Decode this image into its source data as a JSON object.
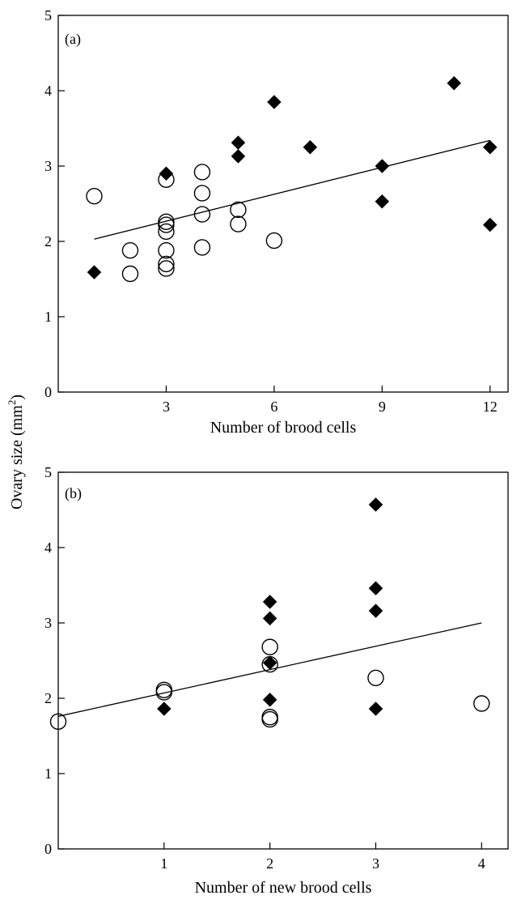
{
  "figure": {
    "ylabel_prefix": "Ovary size (mm",
    "ylabel_sup": "2",
    "ylabel_suffix": ")"
  },
  "chart_data": [
    {
      "type": "scatter",
      "panel_label": "(a)",
      "xlabel": "Number of brood cells",
      "ylabel": "Ovary size (mm2)",
      "xlim": [
        0,
        12.5
      ],
      "ylim": [
        0,
        5
      ],
      "xticks": [
        3,
        6,
        9,
        12
      ],
      "yticks": [
        0,
        1,
        2,
        3,
        4,
        5
      ],
      "grid": false,
      "series": [
        {
          "marker": "open-circle",
          "color": "#000000",
          "points": [
            {
              "x": 1,
              "y": 2.6
            },
            {
              "x": 2,
              "y": 1.88
            },
            {
              "x": 2,
              "y": 1.57
            },
            {
              "x": 3,
              "y": 2.82
            },
            {
              "x": 3,
              "y": 2.26
            },
            {
              "x": 3,
              "y": 2.22
            },
            {
              "x": 3,
              "y": 2.13
            },
            {
              "x": 3,
              "y": 1.88
            },
            {
              "x": 3,
              "y": 1.7
            },
            {
              "x": 3,
              "y": 1.64
            },
            {
              "x": 4,
              "y": 2.92
            },
            {
              "x": 4,
              "y": 2.64
            },
            {
              "x": 4,
              "y": 2.36
            },
            {
              "x": 4,
              "y": 1.92
            },
            {
              "x": 5,
              "y": 2.42
            },
            {
              "x": 5,
              "y": 2.23
            },
            {
              "x": 6,
              "y": 2.01
            }
          ]
        },
        {
          "marker": "filled-diamond",
          "color": "#000000",
          "points": [
            {
              "x": 1,
              "y": 1.59
            },
            {
              "x": 3,
              "y": 2.9
            },
            {
              "x": 5,
              "y": 3.31
            },
            {
              "x": 5,
              "y": 3.13
            },
            {
              "x": 6,
              "y": 3.85
            },
            {
              "x": 7,
              "y": 3.25
            },
            {
              "x": 9,
              "y": 3.0
            },
            {
              "x": 9,
              "y": 2.53
            },
            {
              "x": 11,
              "y": 4.1
            },
            {
              "x": 12,
              "y": 3.25
            },
            {
              "x": 12,
              "y": 2.22
            }
          ]
        }
      ],
      "regression_line": {
        "x": [
          1,
          12
        ],
        "y": [
          2.03,
          3.34
        ]
      }
    },
    {
      "type": "scatter",
      "panel_label": "(b)",
      "xlabel": "Number of new brood cells",
      "ylabel": "Ovary size (mm2)",
      "xlim": [
        0,
        4.25
      ],
      "ylim": [
        0,
        5
      ],
      "xticks": [
        1,
        2,
        3,
        4
      ],
      "yticks": [
        0,
        1,
        2,
        3,
        4,
        5
      ],
      "grid": false,
      "series": [
        {
          "marker": "open-circle",
          "color": "#000000",
          "points": [
            {
              "x": 0,
              "y": 1.69
            },
            {
              "x": 1,
              "y": 2.11
            },
            {
              "x": 1,
              "y": 2.08
            },
            {
              "x": 2,
              "y": 2.68
            },
            {
              "x": 2,
              "y": 2.45
            },
            {
              "x": 2,
              "y": 1.75
            },
            {
              "x": 2,
              "y": 1.72
            },
            {
              "x": 3,
              "y": 2.27
            },
            {
              "x": 4,
              "y": 1.93
            }
          ]
        },
        {
          "marker": "filled-diamond",
          "color": "#000000",
          "points": [
            {
              "x": 1,
              "y": 1.86
            },
            {
              "x": 2,
              "y": 3.28
            },
            {
              "x": 2,
              "y": 3.06
            },
            {
              "x": 2,
              "y": 2.47
            },
            {
              "x": 2,
              "y": 1.98
            },
            {
              "x": 3,
              "y": 4.57
            },
            {
              "x": 3,
              "y": 3.46
            },
            {
              "x": 3,
              "y": 3.16
            },
            {
              "x": 3,
              "y": 1.86
            }
          ]
        }
      ],
      "regression_line": {
        "x": [
          0,
          4
        ],
        "y": [
          1.76,
          3.0
        ]
      }
    }
  ]
}
